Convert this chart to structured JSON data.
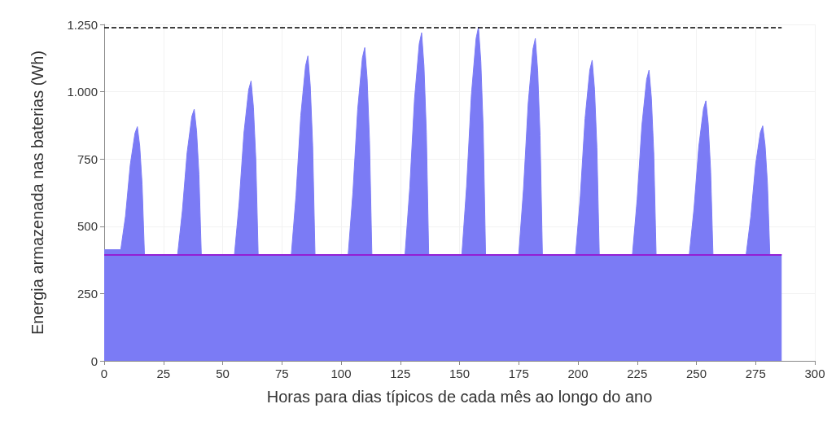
{
  "chart_data": {
    "type": "area",
    "xlabel": "Horas para dias típicos de cada mês ao longo do ano",
    "ylabel": "Energia armazenada nas baterias (Wh)",
    "x": [
      0,
      7,
      9,
      11,
      13,
      14,
      15,
      16,
      17,
      31,
      33,
      35,
      37,
      38,
      39,
      40,
      41,
      55,
      57,
      59,
      61,
      62,
      63,
      64,
      65,
      79,
      81,
      83,
      85,
      86,
      87,
      88,
      89,
      103,
      105,
      107,
      109,
      110,
      111,
      112,
      113,
      127,
      129,
      131,
      133,
      134,
      135,
      136,
      137,
      151,
      153,
      155,
      157,
      158,
      159,
      160,
      161,
      175,
      177,
      179,
      181,
      182,
      183,
      184,
      185,
      199,
      201,
      203,
      205,
      206,
      207,
      208,
      209,
      223,
      225,
      227,
      229,
      230,
      231,
      232,
      233,
      247,
      249,
      251,
      253,
      254,
      255,
      256,
      257,
      271,
      273,
      275,
      277,
      278,
      279,
      280,
      281,
      286
    ],
    "series": [
      {
        "color": "#7b7bf5",
        "values": [
          413,
          413,
          538,
          728,
          846,
          870,
          799,
          656,
          395,
          395,
          557,
          773,
          908,
          935,
          854,
          692,
          395,
          395,
          590,
          847,
          1008,
          1040,
          943,
          750,
          395,
          395,
          616,
          912,
          1096,
          1133,
          1022,
          801,
          395,
          395,
          626,
          933,
          1126,
          1164,
          1049,
          818,
          395,
          395,
          642,
          972,
          1178,
          1219,
          1095,
          848,
          395,
          395,
          649,
          987,
          1198,
          1240,
          1113,
          860,
          395,
          395,
          636,
          957,
          1158,
          1198,
          1078,
          837,
          395,
          395,
          612,
          900,
          1081,
          1117,
          1009,
          792,
          395,
          395,
          601,
          875,
          1046,
          1080,
          977,
          772,
          395,
          395,
          566,
          795,
          937,
          966,
          880,
          709,
          395,
          395,
          538,
          730,
          849,
          873,
          801,
          658,
          395,
          395
        ]
      }
    ],
    "xlim": [
      0,
      300
    ],
    "xticks": [
      0,
      25,
      50,
      75,
      100,
      125,
      150,
      175,
      200,
      225,
      250,
      275,
      300
    ],
    "ylim": [
      0,
      1250
    ],
    "yticks": [
      0,
      250,
      500,
      750,
      {
        "value": 1000,
        "label": "1.000"
      },
      {
        "value": 1250,
        "label": "1.250"
      }
    ],
    "ref_lines": [
      {
        "axis": "y",
        "value": 1240,
        "color": "#000000",
        "line_style": "dashed"
      },
      {
        "axis": "y",
        "value": 395,
        "color": "#9b00c8",
        "line_style": "solid"
      }
    ],
    "grid": true
  }
}
